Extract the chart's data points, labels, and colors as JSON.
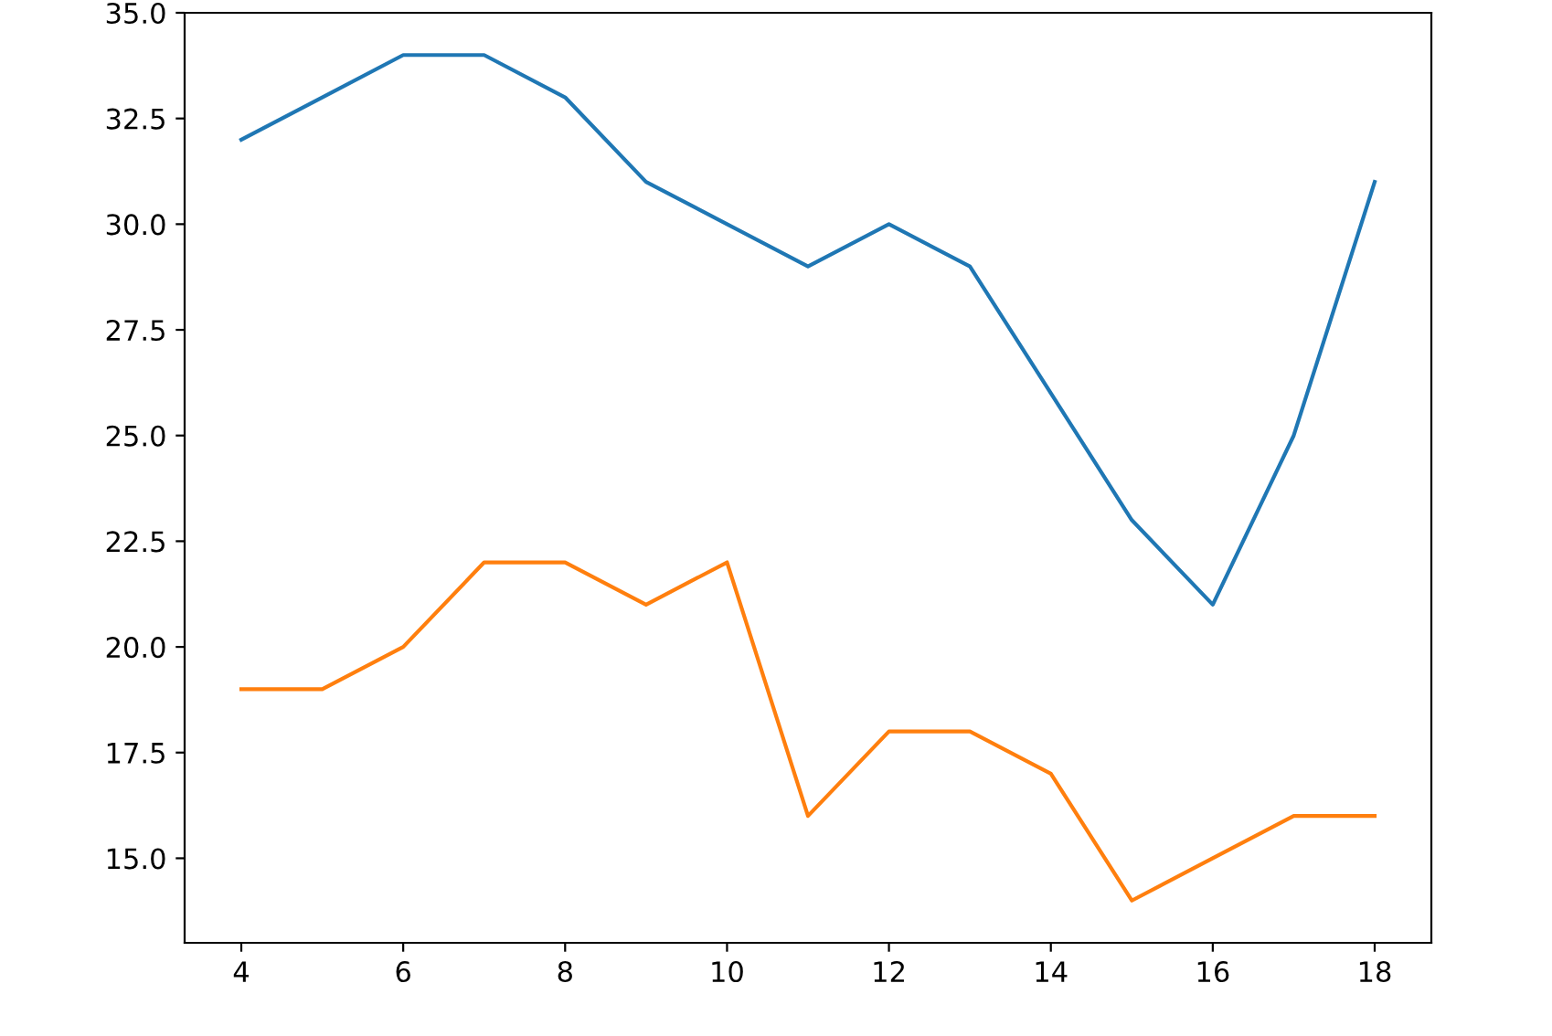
{
  "chart_data": {
    "type": "line",
    "x": [
      4,
      5,
      6,
      7,
      8,
      9,
      10,
      11,
      12,
      13,
      14,
      15,
      16,
      17,
      18
    ],
    "series": [
      {
        "color": "#1f77b4",
        "values": [
          32,
          33,
          34,
          34,
          33,
          31,
          30,
          29,
          30,
          29,
          26,
          23,
          21,
          25,
          31
        ]
      },
      {
        "color": "#ff7f0e",
        "values": [
          19,
          19,
          20,
          22,
          22,
          21,
          22,
          16,
          18,
          18,
          17,
          14,
          15,
          16,
          16
        ]
      }
    ],
    "xlim": [
      3.3,
      18.7
    ],
    "ylim": [
      13,
      35
    ],
    "xticks": [
      4,
      6,
      8,
      10,
      12,
      14,
      16,
      18
    ],
    "yticks": [
      {
        "value": 15,
        "label": "15.0"
      },
      {
        "value": 17.5,
        "label": "17.5"
      },
      {
        "value": 20,
        "label": "20.0"
      },
      {
        "value": 22.5,
        "label": "22.5"
      },
      {
        "value": 25,
        "label": "25.0"
      },
      {
        "value": 27.5,
        "label": "27.5"
      },
      {
        "value": 30,
        "label": "30.0"
      },
      {
        "value": 32.5,
        "label": "32.5"
      },
      {
        "value": 35,
        "label": "35.0"
      }
    ],
    "grid": false,
    "marker": "none",
    "line_style": "solid"
  }
}
